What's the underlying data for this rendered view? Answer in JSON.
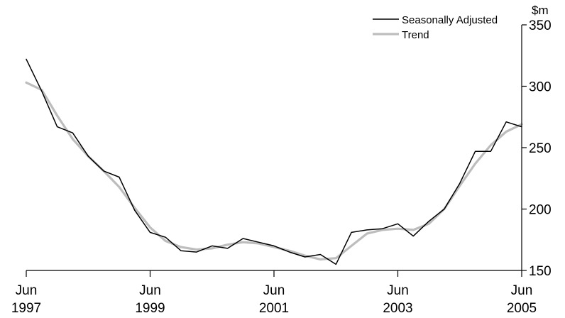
{
  "chart_data": {
    "type": "line",
    "title": "",
    "xlabel": "",
    "ylabel": "$m",
    "unit_label": "$m",
    "x_ticks": [
      {
        "month": "Jun",
        "year": "1997",
        "x": "1997-06"
      },
      {
        "month": "Jun",
        "year": "1999",
        "x": "1999-06"
      },
      {
        "month": "Jun",
        "year": "2001",
        "x": "2001-06"
      },
      {
        "month": "Jun",
        "year": "2003",
        "x": "2003-06"
      },
      {
        "month": "Jun",
        "year": "2005",
        "x": "2005-06"
      }
    ],
    "y_ticks": [
      150,
      200,
      250,
      300,
      350
    ],
    "ylim": [
      150,
      350
    ],
    "xlim": [
      "1997-06",
      "2005-06"
    ],
    "grid": false,
    "legend_position": "top-right",
    "y_axis_side": "right",
    "x": [
      "1997-06",
      "1997-09",
      "1997-12",
      "1998-03",
      "1998-06",
      "1998-09",
      "1998-12",
      "1999-03",
      "1999-06",
      "1999-09",
      "1999-12",
      "2000-03",
      "2000-06",
      "2000-09",
      "2000-12",
      "2001-03",
      "2001-06",
      "2001-09",
      "2001-12",
      "2002-03",
      "2002-06",
      "2002-09",
      "2002-12",
      "2003-03",
      "2003-06",
      "2003-09",
      "2003-12",
      "2004-03",
      "2004-06",
      "2004-09",
      "2004-12",
      "2005-03",
      "2005-06"
    ],
    "series": [
      {
        "name": "Seasonally Adjusted",
        "color": "#000000",
        "values": [
          322,
          296,
          267,
          262,
          243,
          231,
          226,
          199,
          181,
          177,
          166,
          165,
          170,
          168,
          176,
          173,
          170,
          165,
          161,
          163,
          155,
          181,
          183,
          184,
          188,
          178,
          190,
          200,
          221,
          247,
          247,
          271,
          267
        ]
      },
      {
        "name": "Trend",
        "color": "#bdbdbd",
        "values": [
          303,
          297,
          276,
          257,
          243,
          231,
          218,
          201,
          185,
          174,
          169,
          167,
          168,
          171,
          173,
          172,
          169,
          166,
          162,
          159,
          160,
          170,
          180,
          183,
          184,
          183,
          188,
          200,
          219,
          237,
          252,
          263,
          269
        ]
      }
    ]
  }
}
